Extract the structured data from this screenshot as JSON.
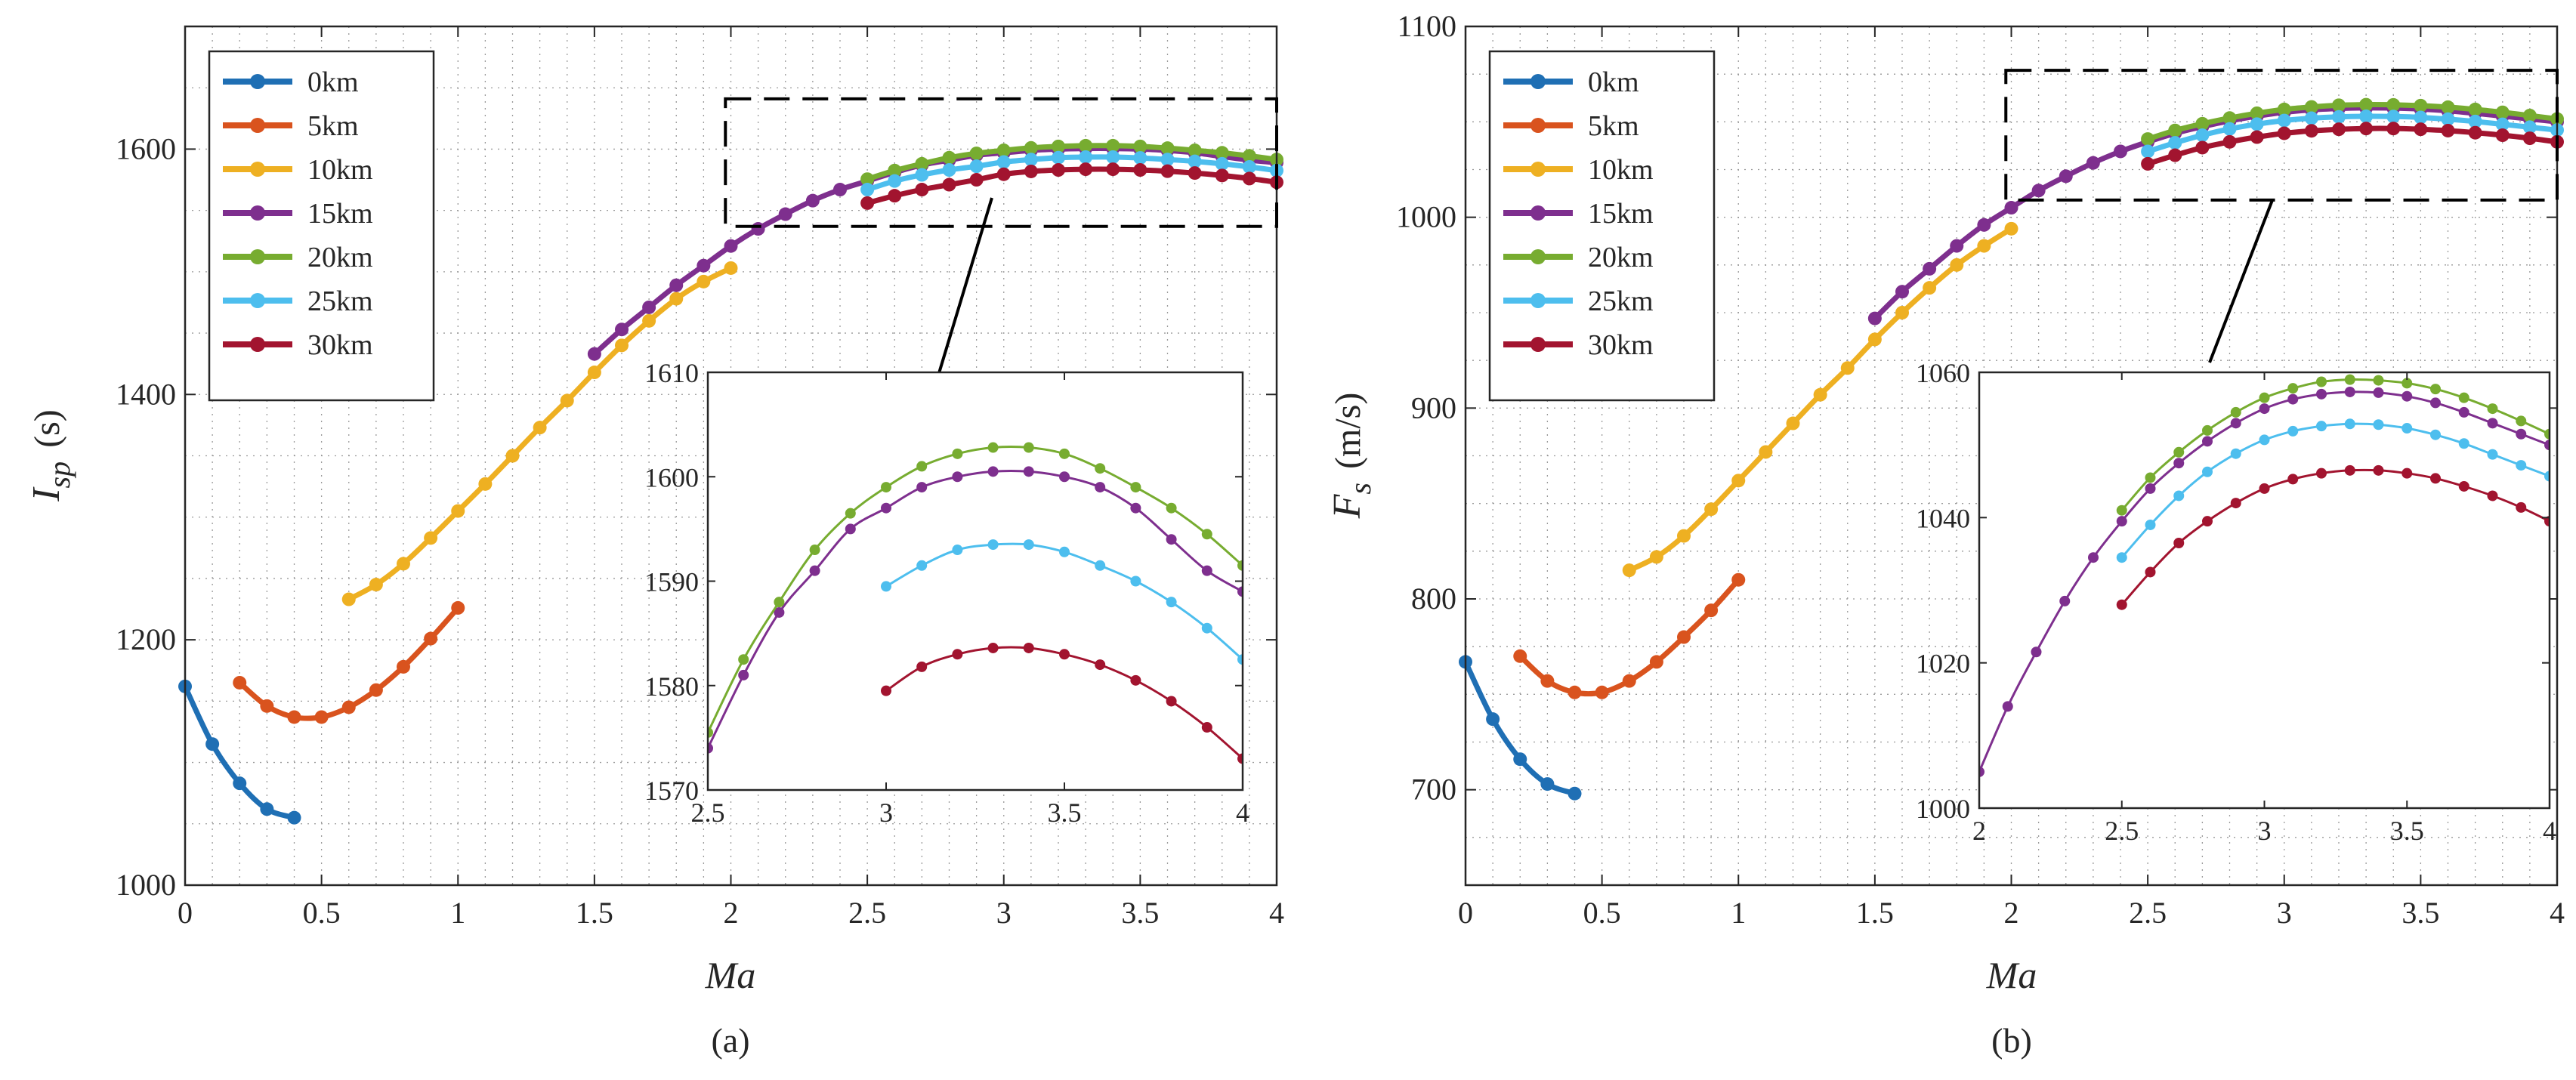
{
  "colors": {
    "0km": "#1f6fb4",
    "5km": "#d9531e",
    "10km": "#eeb022",
    "15km": "#7e2f8e",
    "20km": "#77ac30",
    "25km": "#4dbeee",
    "30km": "#a2142f"
  },
  "chart_data": [
    {
      "type": "line",
      "panel_caption": "(a)",
      "xlabel": "Ma",
      "ylabel_symbol": "I",
      "ylabel_subscript": "sp",
      "ylabel_unit": "(s)",
      "xlim": [
        0,
        4
      ],
      "ylim": [
        1000,
        1700
      ],
      "xticks": [
        "0",
        "0.5",
        "1",
        "1.5",
        "2",
        "2.5",
        "3",
        "3.5",
        "4"
      ],
      "xtick_values": [
        0,
        0.5,
        1,
        1.5,
        2,
        2.5,
        3,
        3.5,
        4
      ],
      "yticks": [
        "1000",
        "1200",
        "1400",
        "1600"
      ],
      "ytick_values": [
        1000,
        1200,
        1400,
        1600
      ],
      "grid": true,
      "legend_position": "top-left",
      "series": [
        {
          "name": "0km",
          "x": [
            0,
            0.1,
            0.2,
            0.3,
            0.4
          ],
          "values": [
            1162,
            1115,
            1083,
            1062,
            1055
          ]
        },
        {
          "name": "5km",
          "x": [
            0.2,
            0.3,
            0.4,
            0.5,
            0.6,
            0.7,
            0.8,
            0.9,
            1.0
          ],
          "values": [
            1165,
            1146,
            1137,
            1137,
            1145,
            1159,
            1178,
            1201,
            1226
          ]
        },
        {
          "name": "10km",
          "x": [
            0.6,
            0.7,
            0.8,
            0.9,
            1.0,
            1.1,
            1.2,
            1.3,
            1.4,
            1.5,
            1.6,
            1.7,
            1.8,
            1.9,
            2.0
          ],
          "values": [
            1233,
            1245,
            1262,
            1283,
            1305,
            1327,
            1350,
            1373,
            1395,
            1418,
            1440,
            1460,
            1478,
            1492,
            1503
          ]
        },
        {
          "name": "15km",
          "x": [
            1.5,
            1.6,
            1.7,
            1.8,
            1.9,
            2.0,
            2.1,
            2.2,
            2.3,
            2.4,
            2.5,
            2.6,
            2.7,
            2.8,
            2.9,
            3.0,
            3.1,
            3.2,
            3.3,
            3.4,
            3.5,
            3.6,
            3.7,
            3.8,
            3.9,
            4.0
          ],
          "values": [
            1433,
            1453,
            1471,
            1489,
            1505,
            1521,
            1535,
            1547,
            1558,
            1567,
            1574,
            1581,
            1587,
            1591,
            1595,
            1597,
            1599,
            1600,
            1600.5,
            1600.5,
            1600,
            1599,
            1597,
            1594,
            1591,
            1589
          ]
        },
        {
          "name": "20km",
          "x": [
            2.5,
            2.6,
            2.7,
            2.8,
            2.9,
            3.0,
            3.1,
            3.2,
            3.3,
            3.4,
            3.5,
            3.6,
            3.7,
            3.8,
            3.9,
            4.0
          ],
          "values": [
            1575.5,
            1582.5,
            1588,
            1593,
            1596.5,
            1599,
            1601,
            1602.2,
            1602.8,
            1602.8,
            1602.2,
            1600.8,
            1599,
            1597,
            1594.5,
            1591.5
          ]
        },
        {
          "name": "25km",
          "x": [
            2.5,
            2.6,
            2.7,
            2.8,
            2.9,
            3.0,
            3.1,
            3.2,
            3.3,
            3.4,
            3.5,
            3.6,
            3.7,
            3.8,
            3.9,
            4.0
          ],
          "values": [
            1567,
            1574,
            1579,
            1583,
            1586,
            1589.5,
            1591.5,
            1593,
            1593.5,
            1593.5,
            1592.8,
            1591.5,
            1590,
            1588,
            1585.5,
            1582.5
          ]
        },
        {
          "name": "30km",
          "x": [
            2.5,
            2.6,
            2.7,
            2.8,
            2.9,
            3.0,
            3.1,
            3.2,
            3.3,
            3.4,
            3.5,
            3.6,
            3.7,
            3.8,
            3.9,
            4.0
          ],
          "values": [
            1556,
            1562,
            1567,
            1571,
            1575,
            1579.5,
            1581.8,
            1583,
            1583.6,
            1583.6,
            1583,
            1582,
            1580.5,
            1578.5,
            1576,
            1573
          ]
        }
      ],
      "zoom_box": {
        "x": [
          1.98,
          4.0
        ],
        "y": [
          1537,
          1641
        ]
      },
      "inset": {
        "xlim": [
          2.5,
          4
        ],
        "ylim": [
          1570,
          1610
        ],
        "xticks": [
          "2.5",
          "3",
          "3.5",
          "4"
        ],
        "xtick_values": [
          2.5,
          3,
          3.5,
          4
        ],
        "yticks": [
          "1570",
          "1580",
          "1590",
          "1600",
          "1610"
        ],
        "ytick_values": [
          1570,
          1580,
          1590,
          1600,
          1610
        ],
        "series": [
          "15km",
          "20km",
          "25km",
          "30km"
        ],
        "series_ranges": {
          "15km": [
            2.5,
            4.0
          ],
          "20km": [
            2.5,
            4.0
          ],
          "25km": [
            3.0,
            4.0
          ],
          "30km": [
            3.0,
            4.0
          ]
        }
      }
    },
    {
      "type": "line",
      "panel_caption": "(b)",
      "xlabel": "Ma",
      "ylabel_symbol": "F",
      "ylabel_subscript": "s",
      "ylabel_unit": "(m/s)",
      "xlim": [
        0,
        4
      ],
      "ylim": [
        650,
        1100
      ],
      "xticks": [
        "0",
        "0.5",
        "1",
        "1.5",
        "2",
        "2.5",
        "3",
        "3.5",
        "4"
      ],
      "xtick_values": [
        0,
        0.5,
        1,
        1.5,
        2,
        2.5,
        3,
        3.5,
        4
      ],
      "yticks": [
        "700",
        "800",
        "900",
        "1000",
        "1100"
      ],
      "ytick_values": [
        700,
        800,
        900,
        1000,
        1100
      ],
      "grid": true,
      "legend_position": "top-left",
      "series": [
        {
          "name": "0km",
          "x": [
            0,
            0.1,
            0.2,
            0.3,
            0.4
          ],
          "values": [
            767,
            737,
            716,
            703,
            698
          ]
        },
        {
          "name": "5km",
          "x": [
            0.2,
            0.3,
            0.4,
            0.5,
            0.6,
            0.7,
            0.8,
            0.9,
            1.0
          ],
          "values": [
            770,
            757,
            751,
            751,
            757,
            767,
            780,
            794,
            810
          ]
        },
        {
          "name": "10km",
          "x": [
            0.6,
            0.7,
            0.8,
            0.9,
            1.0,
            1.1,
            1.2,
            1.3,
            1.4,
            1.5,
            1.6,
            1.7,
            1.8,
            1.9,
            2.0
          ],
          "values": [
            815,
            822,
            833,
            847,
            862,
            877,
            892,
            907,
            921,
            936,
            950,
            963,
            975,
            985,
            994
          ]
        },
        {
          "name": "15km",
          "x": [
            1.5,
            1.6,
            1.7,
            1.8,
            1.9,
            2.0,
            2.1,
            2.2,
            2.3,
            2.4,
            2.5,
            2.6,
            2.7,
            2.8,
            2.9,
            3.0,
            3.1,
            3.2,
            3.3,
            3.4,
            3.5,
            3.6,
            3.7,
            3.8,
            3.9,
            4.0
          ],
          "values": [
            947,
            961,
            973,
            985,
            996,
            1005,
            1014,
            1021.5,
            1028.5,
            1034.5,
            1039.5,
            1044,
            1047.5,
            1050.5,
            1053,
            1055,
            1056.3,
            1057,
            1057.3,
            1057.2,
            1056.7,
            1055.8,
            1054.5,
            1053,
            1051.5,
            1050
          ]
        },
        {
          "name": "20km",
          "x": [
            2.5,
            2.6,
            2.7,
            2.8,
            2.9,
            3.0,
            3.1,
            3.2,
            3.3,
            3.4,
            3.5,
            3.6,
            3.7,
            3.8,
            3.9,
            4.0
          ],
          "values": [
            1041,
            1045.5,
            1049,
            1052,
            1054.5,
            1056.5,
            1057.8,
            1058.7,
            1059,
            1058.9,
            1058.5,
            1057.7,
            1056.5,
            1055,
            1053.3,
            1051.5
          ]
        },
        {
          "name": "25km",
          "x": [
            2.5,
            2.6,
            2.7,
            2.8,
            2.9,
            3.0,
            3.1,
            3.2,
            3.3,
            3.4,
            3.5,
            3.6,
            3.7,
            3.8,
            3.9,
            4.0
          ],
          "values": [
            1034.5,
            1039,
            1043,
            1046.3,
            1048.8,
            1050.7,
            1051.9,
            1052.6,
            1052.9,
            1052.8,
            1052.3,
            1051.4,
            1050.2,
            1048.7,
            1047.2,
            1045.7
          ]
        },
        {
          "name": "30km",
          "x": [
            2.5,
            2.6,
            2.7,
            2.8,
            2.9,
            3.0,
            3.1,
            3.2,
            3.3,
            3.4,
            3.5,
            3.6,
            3.7,
            3.8,
            3.9,
            4.0
          ],
          "values": [
            1028,
            1032.5,
            1036.5,
            1039.5,
            1042,
            1044,
            1045.3,
            1046.1,
            1046.5,
            1046.5,
            1046.1,
            1045.4,
            1044.3,
            1043,
            1041.4,
            1039.5
          ]
        }
      ],
      "zoom_box": {
        "x": [
          1.98,
          4.0
        ],
        "y": [
          1009,
          1077
        ]
      },
      "inset": {
        "xlim": [
          2,
          4
        ],
        "ylim": [
          1000,
          1060
        ],
        "xticks": [
          "2",
          "2.5",
          "3",
          "3.5",
          "4"
        ],
        "xtick_values": [
          2,
          2.5,
          3,
          3.5,
          4
        ],
        "yticks": [
          "1000",
          "1020",
          "1040",
          "1060"
        ],
        "ytick_values": [
          1000,
          1020,
          1040,
          1060
        ],
        "series": [
          "15km",
          "20km",
          "25km",
          "30km"
        ],
        "series_ranges": {
          "15km": [
            2.0,
            4.0
          ],
          "20km": [
            2.5,
            4.0
          ],
          "25km": [
            2.5,
            4.0
          ],
          "30km": [
            2.5,
            4.0
          ]
        }
      }
    }
  ]
}
